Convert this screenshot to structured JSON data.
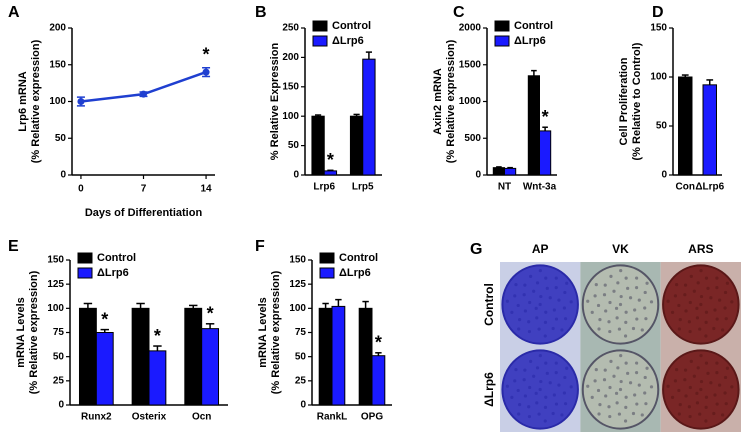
{
  "chart_data": [
    {
      "type": "line",
      "panel": "A",
      "ylabel": [
        "Lrp6 mRNA",
        "(% Relative expression)"
      ],
      "xlabel": "Days of Differentiation",
      "x": [
        0,
        7,
        14
      ],
      "values": [
        100,
        110,
        140
      ],
      "errors": [
        6,
        3,
        6
      ],
      "annotations": [
        null,
        null,
        "*"
      ],
      "color": "#1f3fd0",
      "xlim": [
        -1,
        15
      ],
      "xticks": [
        0,
        7,
        14
      ],
      "ylim": [
        0,
        200
      ],
      "yticks": [
        0,
        50,
        100,
        150,
        200
      ]
    },
    {
      "type": "bar",
      "panel": "B",
      "ylabel": [
        "% Relative Expression"
      ],
      "categories": [
        "Lrp6",
        "Lrp5"
      ],
      "legend": "upper left",
      "series": [
        {
          "name": "Control",
          "color": "#000000",
          "values": [
            100,
            100
          ],
          "errors": [
            2,
            3
          ],
          "annotations": [
            null,
            null
          ]
        },
        {
          "name": "ΔLrp6",
          "color": "#1a1aff",
          "values": [
            7,
            197
          ],
          "errors": [
            1,
            12
          ],
          "annotations": [
            "*",
            null
          ]
        }
      ],
      "ylim": [
        0,
        250
      ],
      "yticks": [
        0,
        50,
        100,
        150,
        200,
        250
      ]
    },
    {
      "type": "bar",
      "panel": "C",
      "ylabel": [
        "Axin2 mRNA",
        "(% Relative expression)"
      ],
      "categories": [
        "NT",
        "Wnt-3a"
      ],
      "legend": "upper left",
      "series": [
        {
          "name": "Control",
          "color": "#000000",
          "values": [
            100,
            1350
          ],
          "errors": [
            10,
            70
          ],
          "annotations": [
            null,
            null
          ]
        },
        {
          "name": "ΔLrp6",
          "color": "#1a1aff",
          "values": [
            90,
            600
          ],
          "errors": [
            10,
            50
          ],
          "annotations": [
            null,
            "*"
          ]
        }
      ],
      "ylim": [
        0,
        2000
      ],
      "yticks": [
        0,
        500,
        1000,
        1500,
        2000
      ]
    },
    {
      "type": "bar",
      "panel": "D",
      "ylabel": [
        "Cell Proliferation",
        "(% Relative to Control)"
      ],
      "categories": [
        "Con",
        "ΔLrp6"
      ],
      "series": [
        {
          "colors": [
            "#000000",
            "#1a1aff"
          ],
          "values": [
            100,
            92
          ],
          "errors": [
            2,
            5
          ],
          "annotations": [
            null,
            null
          ]
        }
      ],
      "ylim": [
        0,
        150
      ],
      "yticks": [
        0,
        50,
        100,
        150
      ]
    },
    {
      "type": "bar",
      "panel": "E",
      "ylabel": [
        "mRNA Levels",
        "(% Relative expression)"
      ],
      "categories": [
        "Runx2",
        "Osterix",
        "Ocn"
      ],
      "legend": "upper left",
      "series": [
        {
          "name": "Control",
          "color": "#000000",
          "values": [
            100,
            100,
            100
          ],
          "errors": [
            5,
            5,
            3
          ],
          "annotations": [
            null,
            null,
            null
          ]
        },
        {
          "name": "ΔLrp6",
          "color": "#1a1aff",
          "values": [
            75,
            56,
            79
          ],
          "errors": [
            3,
            5,
            5
          ],
          "annotations": [
            "*",
            "*",
            "*"
          ]
        }
      ],
      "ylim": [
        0,
        150
      ],
      "yticks": [
        0,
        25,
        50,
        75,
        100,
        125,
        150
      ]
    },
    {
      "type": "bar",
      "panel": "F",
      "ylabel": [
        "mRNA Levels",
        "(% Relative expression)"
      ],
      "categories": [
        "RankL",
        "OPG"
      ],
      "legend": "upper left",
      "series": [
        {
          "name": "Control",
          "color": "#000000",
          "values": [
            100,
            100
          ],
          "errors": [
            5,
            7
          ],
          "annotations": [
            null,
            null
          ]
        },
        {
          "name": "ΔLrp6",
          "color": "#1a1aff",
          "values": [
            102,
            51
          ],
          "errors": [
            7,
            3
          ],
          "annotations": [
            null,
            "*"
          ]
        }
      ],
      "ylim": [
        0,
        150
      ],
      "yticks": [
        0,
        25,
        50,
        75,
        100,
        125,
        150
      ]
    },
    {
      "type": "image",
      "panel": "G",
      "columns": [
        "AP",
        "VK",
        "ARS"
      ],
      "rows": [
        "Control",
        "ΔLrp6"
      ]
    }
  ]
}
